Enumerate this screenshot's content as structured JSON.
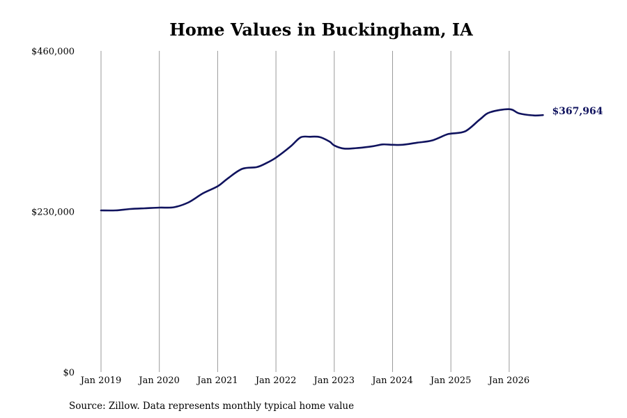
{
  "colors": {
    "line": "#10135e",
    "grid": "#9a9a9a",
    "text": "#000000"
  },
  "chart_data": {
    "type": "line",
    "title": "Home Values in Buckingham, IA",
    "source": "Source: Zillow. Data represents monthly typical home value",
    "xlabel": "",
    "ylabel": "",
    "ylim": [
      0,
      460000
    ],
    "yticks": [
      {
        "value": 0,
        "label": "$0"
      },
      {
        "value": 230000,
        "label": "$230,000"
      },
      {
        "value": 460000,
        "label": "$460,000"
      }
    ],
    "xlim": [
      2019.0,
      2026.75
    ],
    "xticks": [
      {
        "value": 2019,
        "label": "Jan 2019"
      },
      {
        "value": 2020,
        "label": "Jan 2020"
      },
      {
        "value": 2021,
        "label": "Jan 2021"
      },
      {
        "value": 2022,
        "label": "Jan 2022"
      },
      {
        "value": 2023,
        "label": "Jan 2023"
      },
      {
        "value": 2024,
        "label": "Jan 2024"
      },
      {
        "value": 2025,
        "label": "Jan 2025"
      },
      {
        "value": 2026,
        "label": "Jan 2026"
      }
    ],
    "vertical_grid": true,
    "end_label": "$367,964",
    "series": [
      {
        "x": [
          2019.0,
          2019.25,
          2019.5,
          2019.75,
          2020.0,
          2020.25,
          2020.5,
          2020.75,
          2021.0,
          2021.17,
          2021.42,
          2021.67,
          2021.83,
          2022.0,
          2022.25,
          2022.42,
          2022.58,
          2022.75,
          2022.92,
          2023.0,
          2023.17,
          2023.42,
          2023.67,
          2023.83,
          2024.0,
          2024.17,
          2024.42,
          2024.67,
          2024.92,
          2025.0,
          2025.25,
          2025.5,
          2025.67,
          2026.0,
          2026.17,
          2026.42,
          2026.58
        ],
        "y": [
          231500,
          231500,
          233500,
          234500,
          235500,
          236000,
          243000,
          256000,
          266000,
          277000,
          291000,
          293500,
          299000,
          307000,
          323000,
          336000,
          337000,
          336500,
          330000,
          324500,
          320000,
          321000,
          323500,
          326000,
          325500,
          325500,
          328500,
          331500,
          340000,
          341500,
          345000,
          362000,
          372000,
          376500,
          370500,
          367500,
          367964
        ]
      }
    ]
  }
}
